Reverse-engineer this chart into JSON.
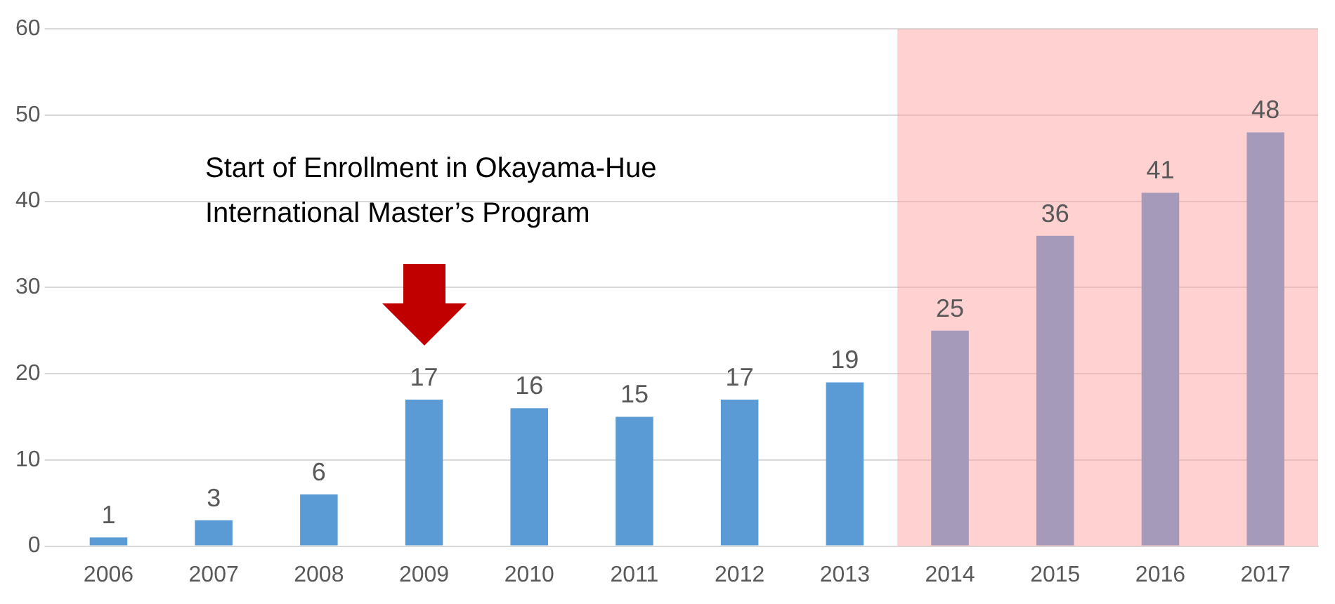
{
  "chart_data": {
    "type": "bar",
    "categories": [
      "2006",
      "2007",
      "2008",
      "2009",
      "2010",
      "2011",
      "2012",
      "2013",
      "2014",
      "2015",
      "2016",
      "2017"
    ],
    "values": [
      1,
      3,
      6,
      17,
      16,
      15,
      17,
      19,
      25,
      36,
      41,
      48
    ],
    "color": "#5b9bd5",
    "ylim": [
      0,
      60
    ],
    "yticks": [
      0,
      10,
      20,
      30,
      40,
      50,
      60
    ],
    "grid": "y",
    "data_labels": true,
    "legend": false,
    "bands": [
      {
        "axis": "x",
        "from": "2014",
        "to": "2017",
        "color": "#ff9999"
      }
    ],
    "annotations": [
      "Start of Enrollment in Okayama-Hue International Master’s Program"
    ]
  }
}
